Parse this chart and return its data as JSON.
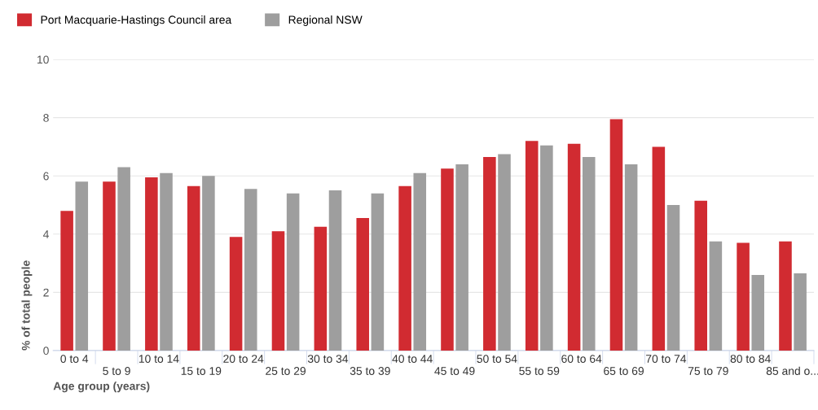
{
  "chart_data": {
    "type": "bar",
    "xlabel": "Age group (years)",
    "ylabel": "% of total people",
    "categories": [
      "0 to 4",
      "5 to 9",
      "10 to 14",
      "15 to 19",
      "20 to 24",
      "25 to 29",
      "30 to 34",
      "35 to 39",
      "40 to 44",
      "45 to 49",
      "50 to 54",
      "55 to 59",
      "60 to 64",
      "65 to 69",
      "70 to 74",
      "75 to 79",
      "80 to 84",
      "85 and o..."
    ],
    "series": [
      {
        "name": "Port Macquarie-Hastings Council area",
        "color": "#d12b31",
        "values": [
          4.8,
          5.8,
          5.95,
          5.65,
          3.9,
          4.1,
          4.25,
          4.55,
          5.65,
          6.25,
          6.65,
          7.2,
          7.1,
          7.95,
          7.0,
          5.15,
          3.7,
          3.75
        ]
      },
      {
        "name": "Regional NSW",
        "color": "#9e9e9e",
        "values": [
          5.8,
          6.3,
          6.1,
          6.0,
          5.55,
          5.4,
          5.5,
          5.4,
          6.1,
          6.4,
          6.75,
          7.05,
          6.65,
          6.4,
          5.0,
          3.75,
          2.6,
          2.65
        ]
      }
    ],
    "ylim": [
      0,
      10
    ],
    "yticks": [
      0,
      2,
      4,
      6,
      8,
      10
    ],
    "grid": "y",
    "legend": "top left"
  }
}
